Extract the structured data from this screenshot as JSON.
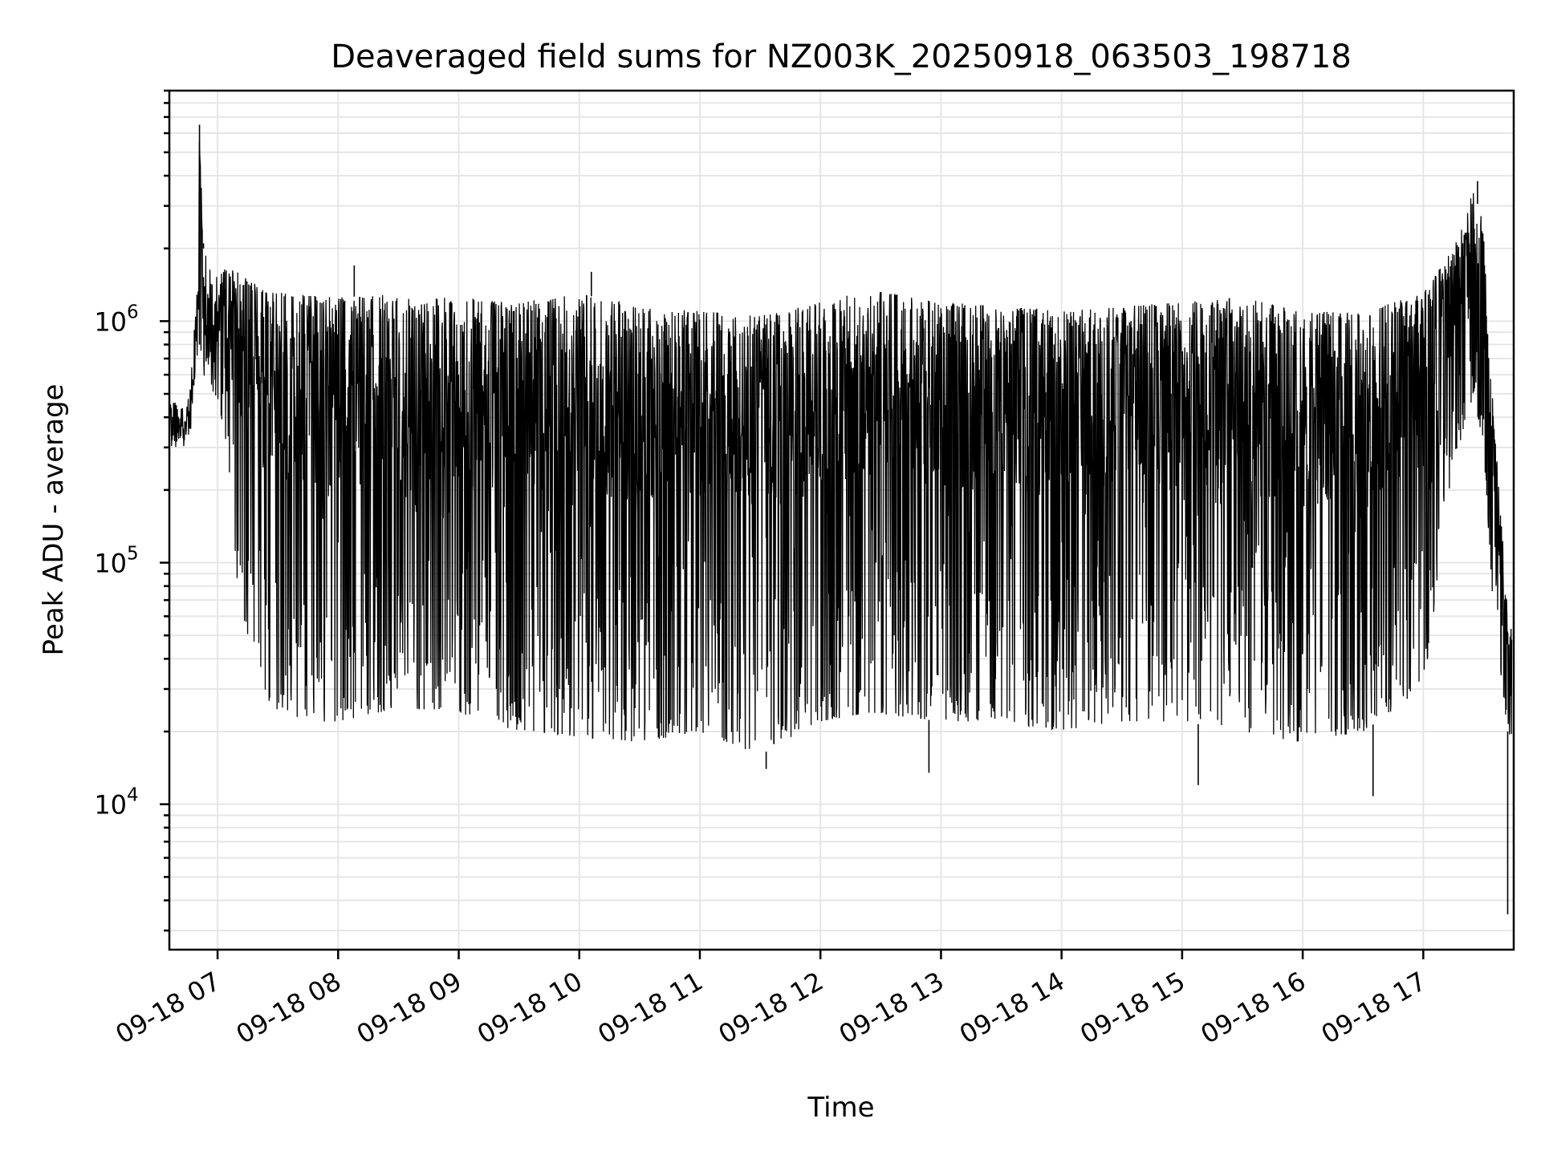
{
  "chart_data": {
    "type": "line",
    "title": "Deaveraged field sums for NZ003K_20250918_063503_198718",
    "xlabel": "Time",
    "ylabel": "Peak ADU - average",
    "yscale": "log",
    "ylim": [
      2500,
      9000000
    ],
    "xlim": [
      "2025-09-18 06:36",
      "2025-09-18 17:45"
    ],
    "grid": true,
    "line_color": "#000000",
    "x_ticks": [
      {
        "t": "2025-09-18 07:00",
        "label": "09-18 07"
      },
      {
        "t": "2025-09-18 08:00",
        "label": "09-18 08"
      },
      {
        "t": "2025-09-18 09:00",
        "label": "09-18 09"
      },
      {
        "t": "2025-09-18 10:00",
        "label": "09-18 10"
      },
      {
        "t": "2025-09-18 11:00",
        "label": "09-18 11"
      },
      {
        "t": "2025-09-18 12:00",
        "label": "09-18 12"
      },
      {
        "t": "2025-09-18 13:00",
        "label": "09-18 13"
      },
      {
        "t": "2025-09-18 14:00",
        "label": "09-18 14"
      },
      {
        "t": "2025-09-18 15:00",
        "label": "09-18 15"
      },
      {
        "t": "2025-09-18 16:00",
        "label": "09-18 16"
      },
      {
        "t": "2025-09-18 17:00",
        "label": "09-18 17"
      }
    ],
    "y_ticks": [
      {
        "value": 10000,
        "base": "10",
        "exp": "4"
      },
      {
        "value": 100000,
        "base": "10",
        "exp": "5"
      },
      {
        "value": 1000000,
        "base": "10",
        "exp": "6"
      }
    ],
    "envelope": [
      {
        "t": "2025-09-18 06:36",
        "upper": 450000,
        "lower": 300000
      },
      {
        "t": "2025-09-18 06:46",
        "upper": 500000,
        "lower": 300000
      },
      {
        "t": "2025-09-18 06:50",
        "upper": 1400000,
        "lower": 700000
      },
      {
        "t": "2025-09-18 06:51",
        "upper": 6500000,
        "lower": 800000
      },
      {
        "t": "2025-09-18 06:53",
        "upper": 2000000,
        "lower": 600000
      },
      {
        "t": "2025-09-18 06:58",
        "upper": 1500000,
        "lower": 500000
      },
      {
        "t": "2025-09-18 07:05",
        "upper": 1700000,
        "lower": 300000
      },
      {
        "t": "2025-09-18 07:10",
        "upper": 1600000,
        "lower": 80000
      },
      {
        "t": "2025-09-18 07:20",
        "upper": 1400000,
        "lower": 30000
      },
      {
        "t": "2025-09-18 07:35",
        "upper": 1300000,
        "lower": 22000
      },
      {
        "t": "2025-09-18 08:00",
        "upper": 1250000,
        "lower": 22000
      },
      {
        "t": "2025-09-18 08:30",
        "upper": 1300000,
        "lower": 25000
      },
      {
        "t": "2025-09-18 09:00",
        "upper": 1250000,
        "lower": 24000
      },
      {
        "t": "2025-09-18 09:30",
        "upper": 1200000,
        "lower": 20000
      },
      {
        "t": "2025-09-18 10:00",
        "upper": 1300000,
        "lower": 19000
      },
      {
        "t": "2025-09-18 10:30",
        "upper": 1150000,
        "lower": 18000
      },
      {
        "t": "2025-09-18 11:00",
        "upper": 1100000,
        "lower": 20000
      },
      {
        "t": "2025-09-18 11:30",
        "upper": 1050000,
        "lower": 16000
      },
      {
        "t": "2025-09-18 12:00",
        "upper": 1200000,
        "lower": 22000
      },
      {
        "t": "2025-09-18 12:25",
        "upper": 1350000,
        "lower": 24000
      },
      {
        "t": "2025-09-18 13:00",
        "upper": 1200000,
        "lower": 22000
      },
      {
        "t": "2025-09-18 13:30",
        "upper": 1150000,
        "lower": 22000
      },
      {
        "t": "2025-09-18 14:00",
        "upper": 1100000,
        "lower": 20000
      },
      {
        "t": "2025-09-18 14:30",
        "upper": 1150000,
        "lower": 22000
      },
      {
        "t": "2025-09-18 15:00",
        "upper": 1200000,
        "lower": 22000
      },
      {
        "t": "2025-09-18 15:30",
        "upper": 1250000,
        "lower": 20000
      },
      {
        "t": "2025-09-18 16:00",
        "upper": 1100000,
        "lower": 18000
      },
      {
        "t": "2025-09-18 16:30",
        "upper": 1100000,
        "lower": 20000
      },
      {
        "t": "2025-09-18 17:00",
        "upper": 1300000,
        "lower": 30000
      },
      {
        "t": "2025-09-18 17:15",
        "upper": 2000000,
        "lower": 250000
      },
      {
        "t": "2025-09-18 17:25",
        "upper": 3500000,
        "lower": 500000
      },
      {
        "t": "2025-09-18 17:30",
        "upper": 2500000,
        "lower": 300000
      },
      {
        "t": "2025-09-18 17:35",
        "upper": 400000,
        "lower": 60000
      },
      {
        "t": "2025-09-18 17:42",
        "upper": 80000,
        "lower": 20000
      },
      {
        "t": "2025-09-18 17:44",
        "upper": 50000,
        "lower": 18000
      }
    ],
    "spikes": [
      {
        "t": "2025-09-18 06:51",
        "value": 6500000
      },
      {
        "t": "2025-09-18 06:53",
        "value": 2100000
      },
      {
        "t": "2025-09-18 08:08",
        "value": 1700000
      },
      {
        "t": "2025-09-18 10:06",
        "value": 1600000
      },
      {
        "t": "2025-09-18 11:33",
        "value": 14000
      },
      {
        "t": "2025-09-18 12:54",
        "value": 13500
      },
      {
        "t": "2025-09-18 15:08",
        "value": 12000
      },
      {
        "t": "2025-09-18 16:35",
        "value": 10800
      },
      {
        "t": "2025-09-18 17:27",
        "value": 3800000
      },
      {
        "t": "2025-09-18 17:42",
        "value": 3500
      }
    ]
  }
}
